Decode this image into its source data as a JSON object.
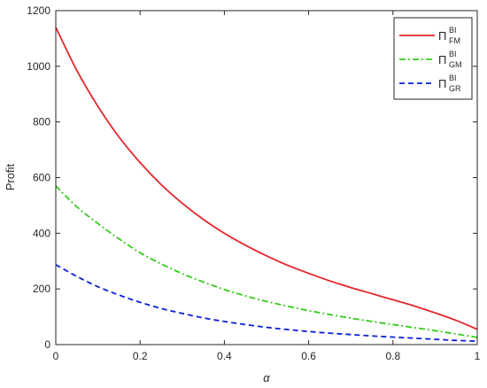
{
  "chart_data": {
    "type": "line",
    "title": "",
    "xlabel": "α",
    "ylabel": "Profit",
    "xlim": [
      0,
      1
    ],
    "ylim": [
      0,
      1200
    ],
    "x_ticks": [
      0,
      0.2,
      0.4,
      0.6,
      0.8,
      1
    ],
    "x_tick_labels": [
      "0",
      "0.2",
      "0.4",
      "0.6",
      "0.8",
      "1"
    ],
    "y_ticks": [
      0,
      200,
      400,
      600,
      800,
      1000,
      1200
    ],
    "y_tick_labels": [
      "0",
      "200",
      "400",
      "600",
      "800",
      "1000",
      "1200"
    ],
    "grid": false,
    "legend_position": "top-right",
    "x": [
      0,
      0.05,
      0.1,
      0.15,
      0.2,
      0.25,
      0.3,
      0.35,
      0.4,
      0.45,
      0.5,
      0.55,
      0.6,
      0.65,
      0.7,
      0.75,
      0.8,
      0.85,
      0.9,
      0.95,
      1
    ],
    "series": [
      {
        "name_main": "Π",
        "name_sup": "BI",
        "name_sub": "FM",
        "color": "#e4262c",
        "line_style": "solid",
        "values": [
          1140,
          985,
          856,
          746,
          654,
          575,
          508,
          450,
          400,
          357,
          319,
          285,
          256,
          229,
          205,
          183,
          161,
          139,
          114,
          87,
          55
        ]
      },
      {
        "name_main": "Π",
        "name_sup": "BI",
        "name_sub": "GM",
        "color": "#33cc1a",
        "line_style": "dashdot",
        "values": [
          570,
          495,
          435,
          380,
          330,
          290,
          255,
          225,
          198,
          175,
          155,
          138,
          122,
          108,
          95,
          83,
          72,
          61,
          50,
          38,
          26
        ]
      },
      {
        "name_main": "Π",
        "name_sup": "BI",
        "name_sub": "GR",
        "color": "#0a1fd6",
        "line_style": "dashed",
        "values": [
          287,
          245,
          208,
          178,
          152,
          130,
          112,
          96,
          83,
          72,
          62,
          54,
          47,
          41,
          36,
          31,
          27,
          23,
          19,
          15,
          12
        ]
      }
    ]
  }
}
